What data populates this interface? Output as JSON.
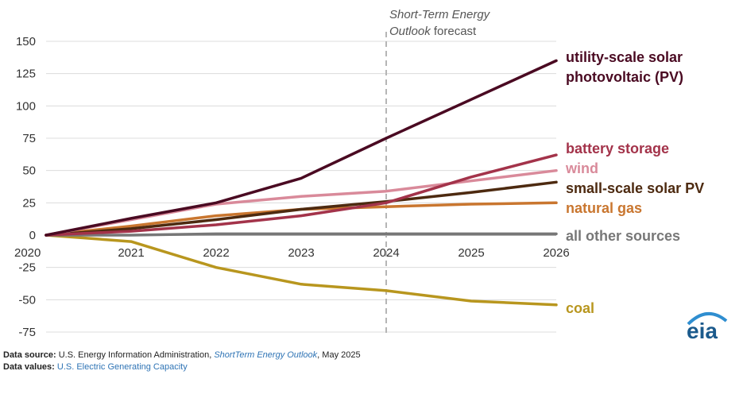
{
  "chart_data": {
    "type": "line",
    "title": "",
    "xlabel": "",
    "ylabel": "",
    "categories": [
      "2020",
      "2021",
      "2022",
      "2023",
      "2024",
      "2025",
      "2026"
    ],
    "ylim": [
      -75,
      150
    ],
    "yticks": [
      "150",
      "125",
      "100",
      "75",
      "50",
      "25",
      "0",
      "-25",
      "-50",
      "-75"
    ],
    "forecast_start": "2024",
    "forecast_annotation": {
      "italic": "Short-Term Energy",
      "italic2": "Outlook",
      "rest": " forecast"
    },
    "series": [
      {
        "name": "utility-scale solar",
        "name2": "photovoltaic (PV)",
        "color": "#4a0a22",
        "values": [
          0,
          13,
          25,
          44,
          75,
          105,
          135
        ]
      },
      {
        "name": "battery storage",
        "color": "#a3334a",
        "values": [
          0,
          3,
          8,
          15,
          25,
          45,
          62
        ]
      },
      {
        "name": "wind",
        "color": "#d98a9a",
        "values": [
          0,
          12,
          24,
          30,
          34,
          42,
          50
        ]
      },
      {
        "name": "small-scale solar PV",
        "color": "#4d2a10",
        "values": [
          0,
          5,
          12,
          20,
          26,
          33,
          41
        ]
      },
      {
        "name": "natural gas",
        "color": "#c9762f",
        "values": [
          0,
          7,
          15,
          20,
          22,
          24,
          25
        ]
      },
      {
        "name": "all other sources",
        "color": "#777777",
        "values": [
          0,
          0,
          1,
          1,
          1,
          1,
          1
        ]
      },
      {
        "name": "coal",
        "color": "#b8961e",
        "values": [
          0,
          -5,
          -25,
          -38,
          -43,
          -51,
          -54
        ]
      }
    ]
  },
  "footer": {
    "source_label": "Data source:",
    "source_text": " U.S. Energy Information Administration, ",
    "source_link": "ShortTerm Energy Outlook",
    "source_date": ", May 2025",
    "values_label": "Data values:",
    "values_link": "U.S. Electric Generating Capacity"
  },
  "logo": {
    "text": "eia",
    "color": "#1b5a8c",
    "arc_color": "#2f8ed0"
  }
}
